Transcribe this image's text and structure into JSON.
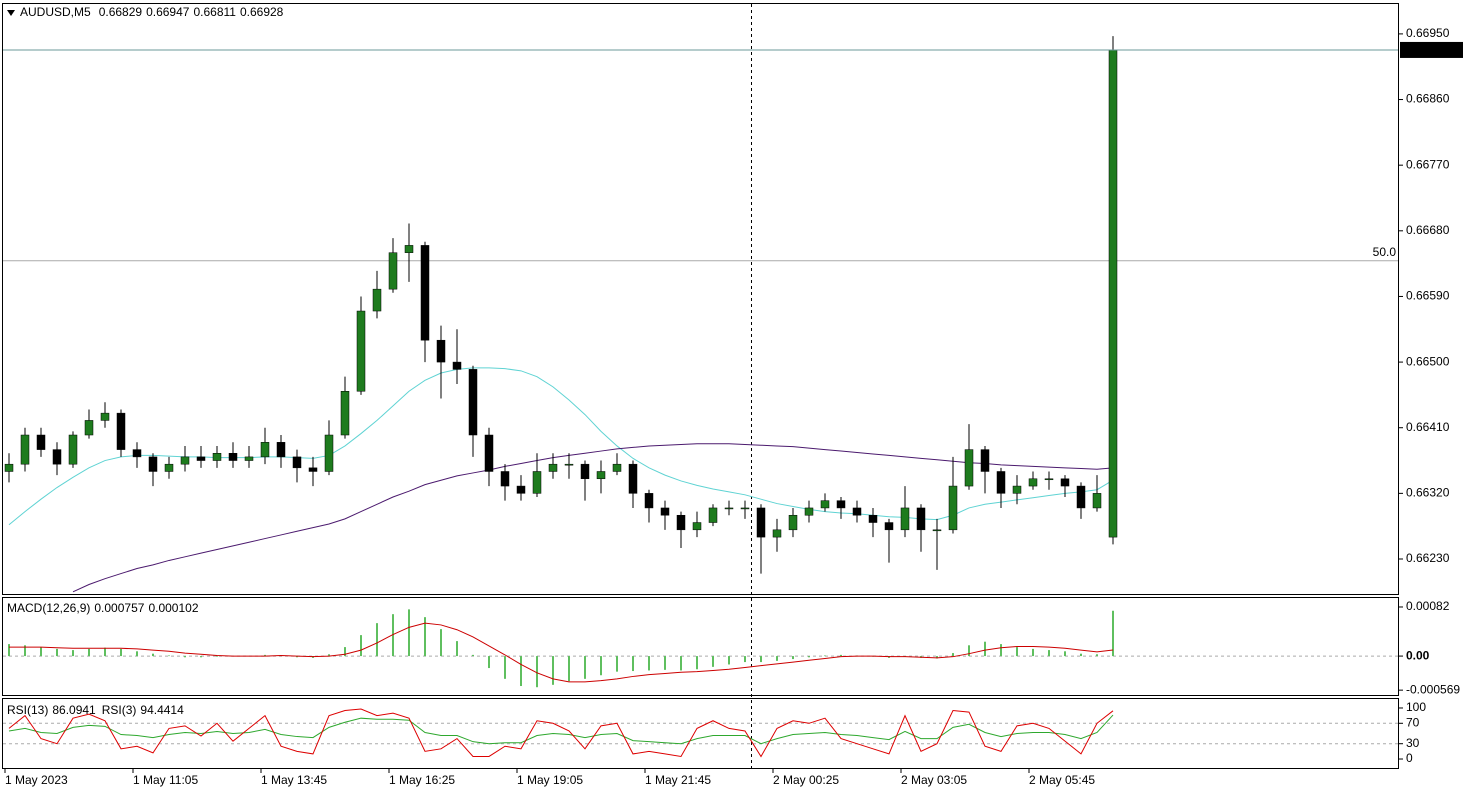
{
  "chart_data": [
    {
      "type": "candlestick",
      "symbol": "AUDUSD,M5",
      "ohlc": [
        0.66829,
        0.66947,
        0.66811,
        0.66928
      ],
      "categories": [
        "1 May 2023",
        null,
        null,
        null,
        null,
        null,
        null,
        null,
        "1 May 11:05",
        null,
        null,
        null,
        null,
        null,
        null,
        null,
        "1 May 13:45",
        null,
        null,
        null,
        null,
        null,
        null,
        null,
        "1 May 16:25",
        null,
        null,
        null,
        null,
        null,
        null,
        null,
        "1 May 19:05",
        null,
        null,
        null,
        null,
        null,
        null,
        null,
        "1 May 21:45",
        null,
        null,
        null,
        null,
        null,
        null,
        null,
        "2 May 00:25",
        null,
        null,
        null,
        null,
        null,
        null,
        null,
        "2 May 03:05",
        null,
        null,
        null,
        null,
        null,
        null,
        null,
        "2 May 05:45",
        null,
        null,
        null,
        null,
        null
      ],
      "open": [
        0.6635,
        0.6636,
        0.664,
        0.6638,
        0.6636,
        0.664,
        0.6642,
        0.6643,
        0.6638,
        0.6637,
        0.6635,
        0.6636,
        0.6637,
        0.66365,
        0.66375,
        0.66365,
        0.6637,
        0.6639,
        0.6637,
        0.66355,
        0.6635,
        0.664,
        0.6646,
        0.6657,
        0.666,
        0.6665,
        0.6666,
        0.6653,
        0.665,
        0.6649,
        0.664,
        0.6635,
        0.6633,
        0.6632,
        0.6635,
        0.6636,
        0.6636,
        0.6634,
        0.6635,
        0.6636,
        0.6632,
        0.663,
        0.6629,
        0.6627,
        0.6628,
        0.663,
        0.663,
        0.663,
        0.6626,
        0.6627,
        0.6629,
        0.663,
        0.6631,
        0.663,
        0.6629,
        0.6628,
        0.6627,
        0.663,
        0.6627,
        0.6627,
        0.6633,
        0.6638,
        0.6635,
        0.6632,
        0.6633,
        0.6634,
        0.6634,
        0.6633,
        0.663,
        0.6626
      ],
      "high": [
        0.66375,
        0.6641,
        0.6641,
        0.6639,
        0.66405,
        0.66435,
        0.66445,
        0.66435,
        0.6639,
        0.66375,
        0.6637,
        0.66385,
        0.66385,
        0.66385,
        0.6639,
        0.66385,
        0.6641,
        0.664,
        0.6638,
        0.6637,
        0.6642,
        0.6648,
        0.6659,
        0.66625,
        0.6667,
        0.6669,
        0.66665,
        0.6655,
        0.66545,
        0.66495,
        0.6641,
        0.6636,
        0.66345,
        0.66375,
        0.66375,
        0.66375,
        0.66365,
        0.66365,
        0.66375,
        0.66365,
        0.66325,
        0.6631,
        0.66295,
        0.66295,
        0.66305,
        0.6631,
        0.6631,
        0.66305,
        0.66285,
        0.663,
        0.6631,
        0.6632,
        0.66315,
        0.6631,
        0.663,
        0.66285,
        0.6633,
        0.66305,
        0.66285,
        0.6637,
        0.66415,
        0.66385,
        0.66355,
        0.66345,
        0.6635,
        0.6635,
        0.66345,
        0.66335,
        0.66345,
        0.66947
      ],
      "low": [
        0.66335,
        0.6635,
        0.6637,
        0.66345,
        0.66355,
        0.66395,
        0.6641,
        0.6637,
        0.66355,
        0.6633,
        0.6634,
        0.6635,
        0.66355,
        0.66355,
        0.66355,
        0.66355,
        0.6636,
        0.66355,
        0.66335,
        0.6633,
        0.66345,
        0.66395,
        0.66455,
        0.6656,
        0.66595,
        0.6661,
        0.665,
        0.6645,
        0.6647,
        0.6637,
        0.6633,
        0.6631,
        0.6631,
        0.66315,
        0.6634,
        0.6634,
        0.6631,
        0.6632,
        0.66345,
        0.663,
        0.6628,
        0.6627,
        0.66245,
        0.6626,
        0.66275,
        0.6629,
        0.66285,
        0.6621,
        0.6624,
        0.6626,
        0.6628,
        0.66295,
        0.66285,
        0.6628,
        0.6626,
        0.66225,
        0.6626,
        0.6624,
        0.66215,
        0.66265,
        0.66325,
        0.6632,
        0.663,
        0.66305,
        0.66325,
        0.66325,
        0.66315,
        0.66285,
        0.66295,
        0.6625
      ],
      "close": [
        0.6636,
        0.664,
        0.6638,
        0.6636,
        0.664,
        0.6642,
        0.6643,
        0.6638,
        0.6637,
        0.6635,
        0.6636,
        0.6637,
        0.66365,
        0.66375,
        0.66365,
        0.6637,
        0.6639,
        0.6637,
        0.66355,
        0.6635,
        0.664,
        0.6646,
        0.6657,
        0.666,
        0.6665,
        0.6666,
        0.6653,
        0.665,
        0.6649,
        0.664,
        0.6635,
        0.6633,
        0.6632,
        0.6635,
        0.6636,
        0.6636,
        0.6634,
        0.6635,
        0.6636,
        0.6632,
        0.663,
        0.6629,
        0.6627,
        0.6628,
        0.663,
        0.663,
        0.663,
        0.6626,
        0.6627,
        0.6629,
        0.663,
        0.6631,
        0.663,
        0.6629,
        0.6628,
        0.6627,
        0.663,
        0.6627,
        0.6627,
        0.6633,
        0.6638,
        0.6635,
        0.6632,
        0.6633,
        0.6634,
        0.6634,
        0.6633,
        0.663,
        0.6632,
        0.66928
      ],
      "up_color": "#1e7b1e",
      "down_color": "#000000",
      "wick_color": "#000000",
      "series": [
        {
          "color": "#5fd3d3",
          "values": [
            0.66277,
            0.66295,
            0.66312,
            0.66328,
            0.66342,
            0.66355,
            0.66365,
            0.6637,
            0.66372,
            0.66372,
            0.66371,
            0.6637,
            0.6637,
            0.66369,
            0.66369,
            0.66369,
            0.6637,
            0.6637,
            0.66369,
            0.66368,
            0.66372,
            0.66385,
            0.66402,
            0.6642,
            0.6644,
            0.6646,
            0.66475,
            0.66485,
            0.6649,
            0.66492,
            0.66492,
            0.66491,
            0.66488,
            0.6648,
            0.66466,
            0.66448,
            0.66428,
            0.66405,
            0.66385,
            0.66368,
            0.66355,
            0.66345,
            0.66337,
            0.66331,
            0.66326,
            0.66322,
            0.66318,
            0.66312,
            0.66306,
            0.66302,
            0.66298,
            0.66295,
            0.66293,
            0.66292,
            0.6629,
            0.66288,
            0.66287,
            0.66285,
            0.66284,
            0.6629,
            0.663,
            0.66305,
            0.66308,
            0.66311,
            0.66314,
            0.66317,
            0.6632,
            0.66322,
            0.66325,
            0.66338
          ]
        },
        {
          "color": "#4b1a6e",
          "values": [
            null,
            null,
            null,
            null,
            0.66185,
            0.66195,
            0.66203,
            0.6621,
            0.66217,
            0.66222,
            0.66228,
            0.66233,
            0.66238,
            0.66243,
            0.66248,
            0.66253,
            0.66258,
            0.66263,
            0.66268,
            0.66273,
            0.66278,
            0.66285,
            0.66295,
            0.66305,
            0.66315,
            0.66323,
            0.66332,
            0.66338,
            0.66344,
            0.66348,
            0.66352,
            0.66357,
            0.66361,
            0.66365,
            0.66369,
            0.66372,
            0.66375,
            0.66378,
            0.66381,
            0.66383,
            0.66385,
            0.66386,
            0.66387,
            0.66388,
            0.66388,
            0.66388,
            0.66387,
            0.66386,
            0.66385,
            0.66384,
            0.66382,
            0.6638,
            0.66378,
            0.66376,
            0.66374,
            0.66372,
            0.6637,
            0.66368,
            0.66366,
            0.66364,
            0.66362,
            0.66361,
            0.66359,
            0.66358,
            0.66357,
            0.66356,
            0.66355,
            0.66354,
            0.66353,
            0.66355
          ]
        }
      ],
      "level": {
        "value": 0.66639,
        "label": "50.0"
      },
      "ylim": [
        0.66182,
        0.66991
      ],
      "yticks": [
        {
          "value": 0.6695,
          "label": "0.66950"
        },
        {
          "value": 0.6686,
          "label": "0.66860"
        },
        {
          "value": 0.6677,
          "label": "0.66770"
        },
        {
          "value": 0.6668,
          "label": "0.66680"
        },
        {
          "value": 0.6659,
          "label": "0.66590"
        },
        {
          "value": 0.665,
          "label": "0.66500"
        },
        {
          "value": 0.6641,
          "label": "0.66410"
        },
        {
          "value": 0.6632,
          "label": "0.66320"
        },
        {
          "value": 0.6623,
          "label": "0.66230"
        }
      ]
    },
    {
      "type": "macd",
      "series": [
        {
          "name": "MACD(12,26,9)",
          "color": "#5fbf5f",
          "values": [
            0.0002,
            0.00018,
            0.00015,
            0.00012,
            0.0001,
            0.00012,
            0.00014,
            0.00012,
            8e-05,
            4e-05,
            1e-05,
            -2e-05,
            -2e-05,
            -1e-05,
            0,
            0,
            2e-05,
            1e-05,
            -2e-05,
            -3e-05,
            3e-05,
            0.00015,
            0.00035,
            0.00055,
            0.0007,
            0.00078,
            0.00065,
            0.00045,
            0.00025,
            2e-05,
            -0.0002,
            -0.00038,
            -0.0005,
            -0.00052,
            -0.00048,
            -0.00042,
            -0.00038,
            -0.00032,
            -0.00026,
            -0.00025,
            -0.00024,
            -0.00023,
            -0.00024,
            -0.00022,
            -0.00018,
            -0.00014,
            -0.0001,
            -0.0001,
            -8e-05,
            -5e-05,
            -2e-05,
            1e-05,
            2e-05,
            1e-05,
            -1e-05,
            -3e-05,
            -1e-05,
            -3e-05,
            -4e-05,
            5e-05,
            0.00018,
            0.00024,
            0.0002,
            0.00015,
            0.00012,
            0.0001,
            8e-05,
            4e-05,
            3e-05,
            0.000757
          ]
        },
        {
          "color": "#cc0000",
          "values": [
            0.00015,
            0.00015,
            0.00015,
            0.00014,
            0.00013,
            0.00013,
            0.00013,
            0.00013,
            0.00012,
            0.0001,
            8e-05,
            5e-05,
            3e-05,
            1e-05,
            0,
            0,
            0,
            1e-05,
            0,
            -1e-05,
            0,
            3e-05,
            0.0001,
            0.00022,
            0.00036,
            0.00048,
            0.00055,
            0.00052,
            0.00044,
            0.00032,
            0.00017,
            2e-05,
            -0.00014,
            -0.00028,
            -0.00038,
            -0.00043,
            -0.00043,
            -0.00041,
            -0.00038,
            -0.00034,
            -0.00031,
            -0.00029,
            -0.00027,
            -0.00026,
            -0.00024,
            -0.00022,
            -0.00019,
            -0.00016,
            -0.00013,
            -0.0001,
            -7e-05,
            -4e-05,
            -1e-05,
            0,
            0,
            -1e-05,
            -1e-05,
            -2e-05,
            -3e-05,
            -1e-05,
            4e-05,
            0.0001,
            0.00014,
            0.00016,
            0.00016,
            0.00015,
            0.00013,
            0.0001,
            7e-05,
            0.000102
          ]
        }
      ],
      "ylim": [
        -0.00065,
        0.00097
      ],
      "yticks": [
        0.00082,
        {
          "value": 0,
          "label": "0.00"
        },
        -0.000569
      ]
    },
    {
      "type": "line",
      "series": [
        {
          "name": "RSI(13)",
          "color": "#2ea82e",
          "values": [
            55,
            60,
            52,
            50,
            62,
            66,
            64,
            48,
            46,
            42,
            48,
            52,
            50,
            54,
            50,
            52,
            58,
            48,
            44,
            42,
            62,
            72,
            80,
            78,
            78,
            76,
            52,
            46,
            46,
            34,
            30,
            32,
            32,
            46,
            50,
            48,
            42,
            48,
            50,
            36,
            34,
            32,
            30,
            40,
            46,
            46,
            46,
            30,
            40,
            48,
            50,
            52,
            48,
            46,
            42,
            38,
            54,
            40,
            40,
            62,
            68,
            52,
            44,
            50,
            52,
            52,
            48,
            40,
            52,
            86.0941
          ]
        },
        {
          "name": "RSI(3)",
          "color": "#dd0000",
          "values": [
            60,
            85,
            40,
            30,
            80,
            88,
            75,
            20,
            25,
            12,
            60,
            65,
            45,
            70,
            35,
            60,
            85,
            25,
            15,
            10,
            85,
            95,
            98,
            85,
            90,
            80,
            15,
            20,
            40,
            5,
            5,
            25,
            20,
            75,
            70,
            55,
            20,
            65,
            70,
            10,
            15,
            10,
            5,
            60,
            75,
            60,
            55,
            5,
            60,
            75,
            70,
            80,
            40,
            30,
            20,
            10,
            85,
            15,
            30,
            95,
            92,
            25,
            15,
            65,
            70,
            60,
            35,
            10,
            70,
            94.4414
          ]
        }
      ],
      "levels": [
        30,
        70
      ],
      "ylim": [
        -17.6,
        117.6
      ],
      "yticks": [
        0,
        30,
        70,
        100
      ]
    }
  ]
}
